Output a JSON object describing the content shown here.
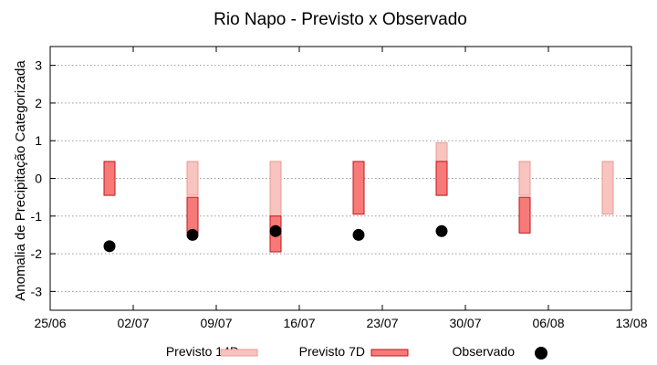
{
  "chart_data": {
    "type": "bar",
    "title": "Rio Napo - Previsto x Observado",
    "xlabel": "",
    "ylabel": "Anomalia de Precipitação Categorizada",
    "ylim": [
      -3.5,
      3.5
    ],
    "yticks": [
      -3,
      -2,
      -1,
      0,
      1,
      2,
      3
    ],
    "xlim": [
      "25/06",
      "13/08"
    ],
    "xticks": [
      "25/06",
      "02/07",
      "09/07",
      "16/07",
      "23/07",
      "30/07",
      "06/08",
      "13/08"
    ],
    "grid": true,
    "legend_position": "bottom",
    "series": [
      {
        "name": "Previsto 14D",
        "color": "#f7c4c0",
        "edge": "#e89a94",
        "bars": [
          {
            "date": "07/07",
            "low": -0.45,
            "high": 0.45
          },
          {
            "date": "14/07",
            "low": -1.0,
            "high": 0.45
          },
          {
            "date": "28/07",
            "low": -0.45,
            "high": 0.95
          },
          {
            "date": "04/08",
            "low": -0.45,
            "high": 0.45
          },
          {
            "date": "11/08",
            "low": -0.95,
            "high": 0.45
          }
        ]
      },
      {
        "name": "Previsto 7D",
        "color": "#f77a78",
        "edge": "#c2141a",
        "bars": [
          {
            "date": "30/06",
            "low": -0.45,
            "high": 0.45
          },
          {
            "date": "07/07",
            "low": -1.45,
            "high": -0.5
          },
          {
            "date": "14/07",
            "low": -1.95,
            "high": -1.0
          },
          {
            "date": "21/07",
            "low": -0.95,
            "high": 0.45
          },
          {
            "date": "28/07",
            "low": -0.45,
            "high": 0.45
          },
          {
            "date": "04/08",
            "low": -1.45,
            "high": -0.5
          }
        ]
      },
      {
        "name": "Observado",
        "color": "#000000",
        "points": [
          {
            "date": "30/06",
            "value": -1.8
          },
          {
            "date": "07/07",
            "value": -1.5
          },
          {
            "date": "14/07",
            "value": -1.4
          },
          {
            "date": "21/07",
            "value": -1.5
          },
          {
            "date": "28/07",
            "value": -1.4
          }
        ]
      }
    ]
  }
}
